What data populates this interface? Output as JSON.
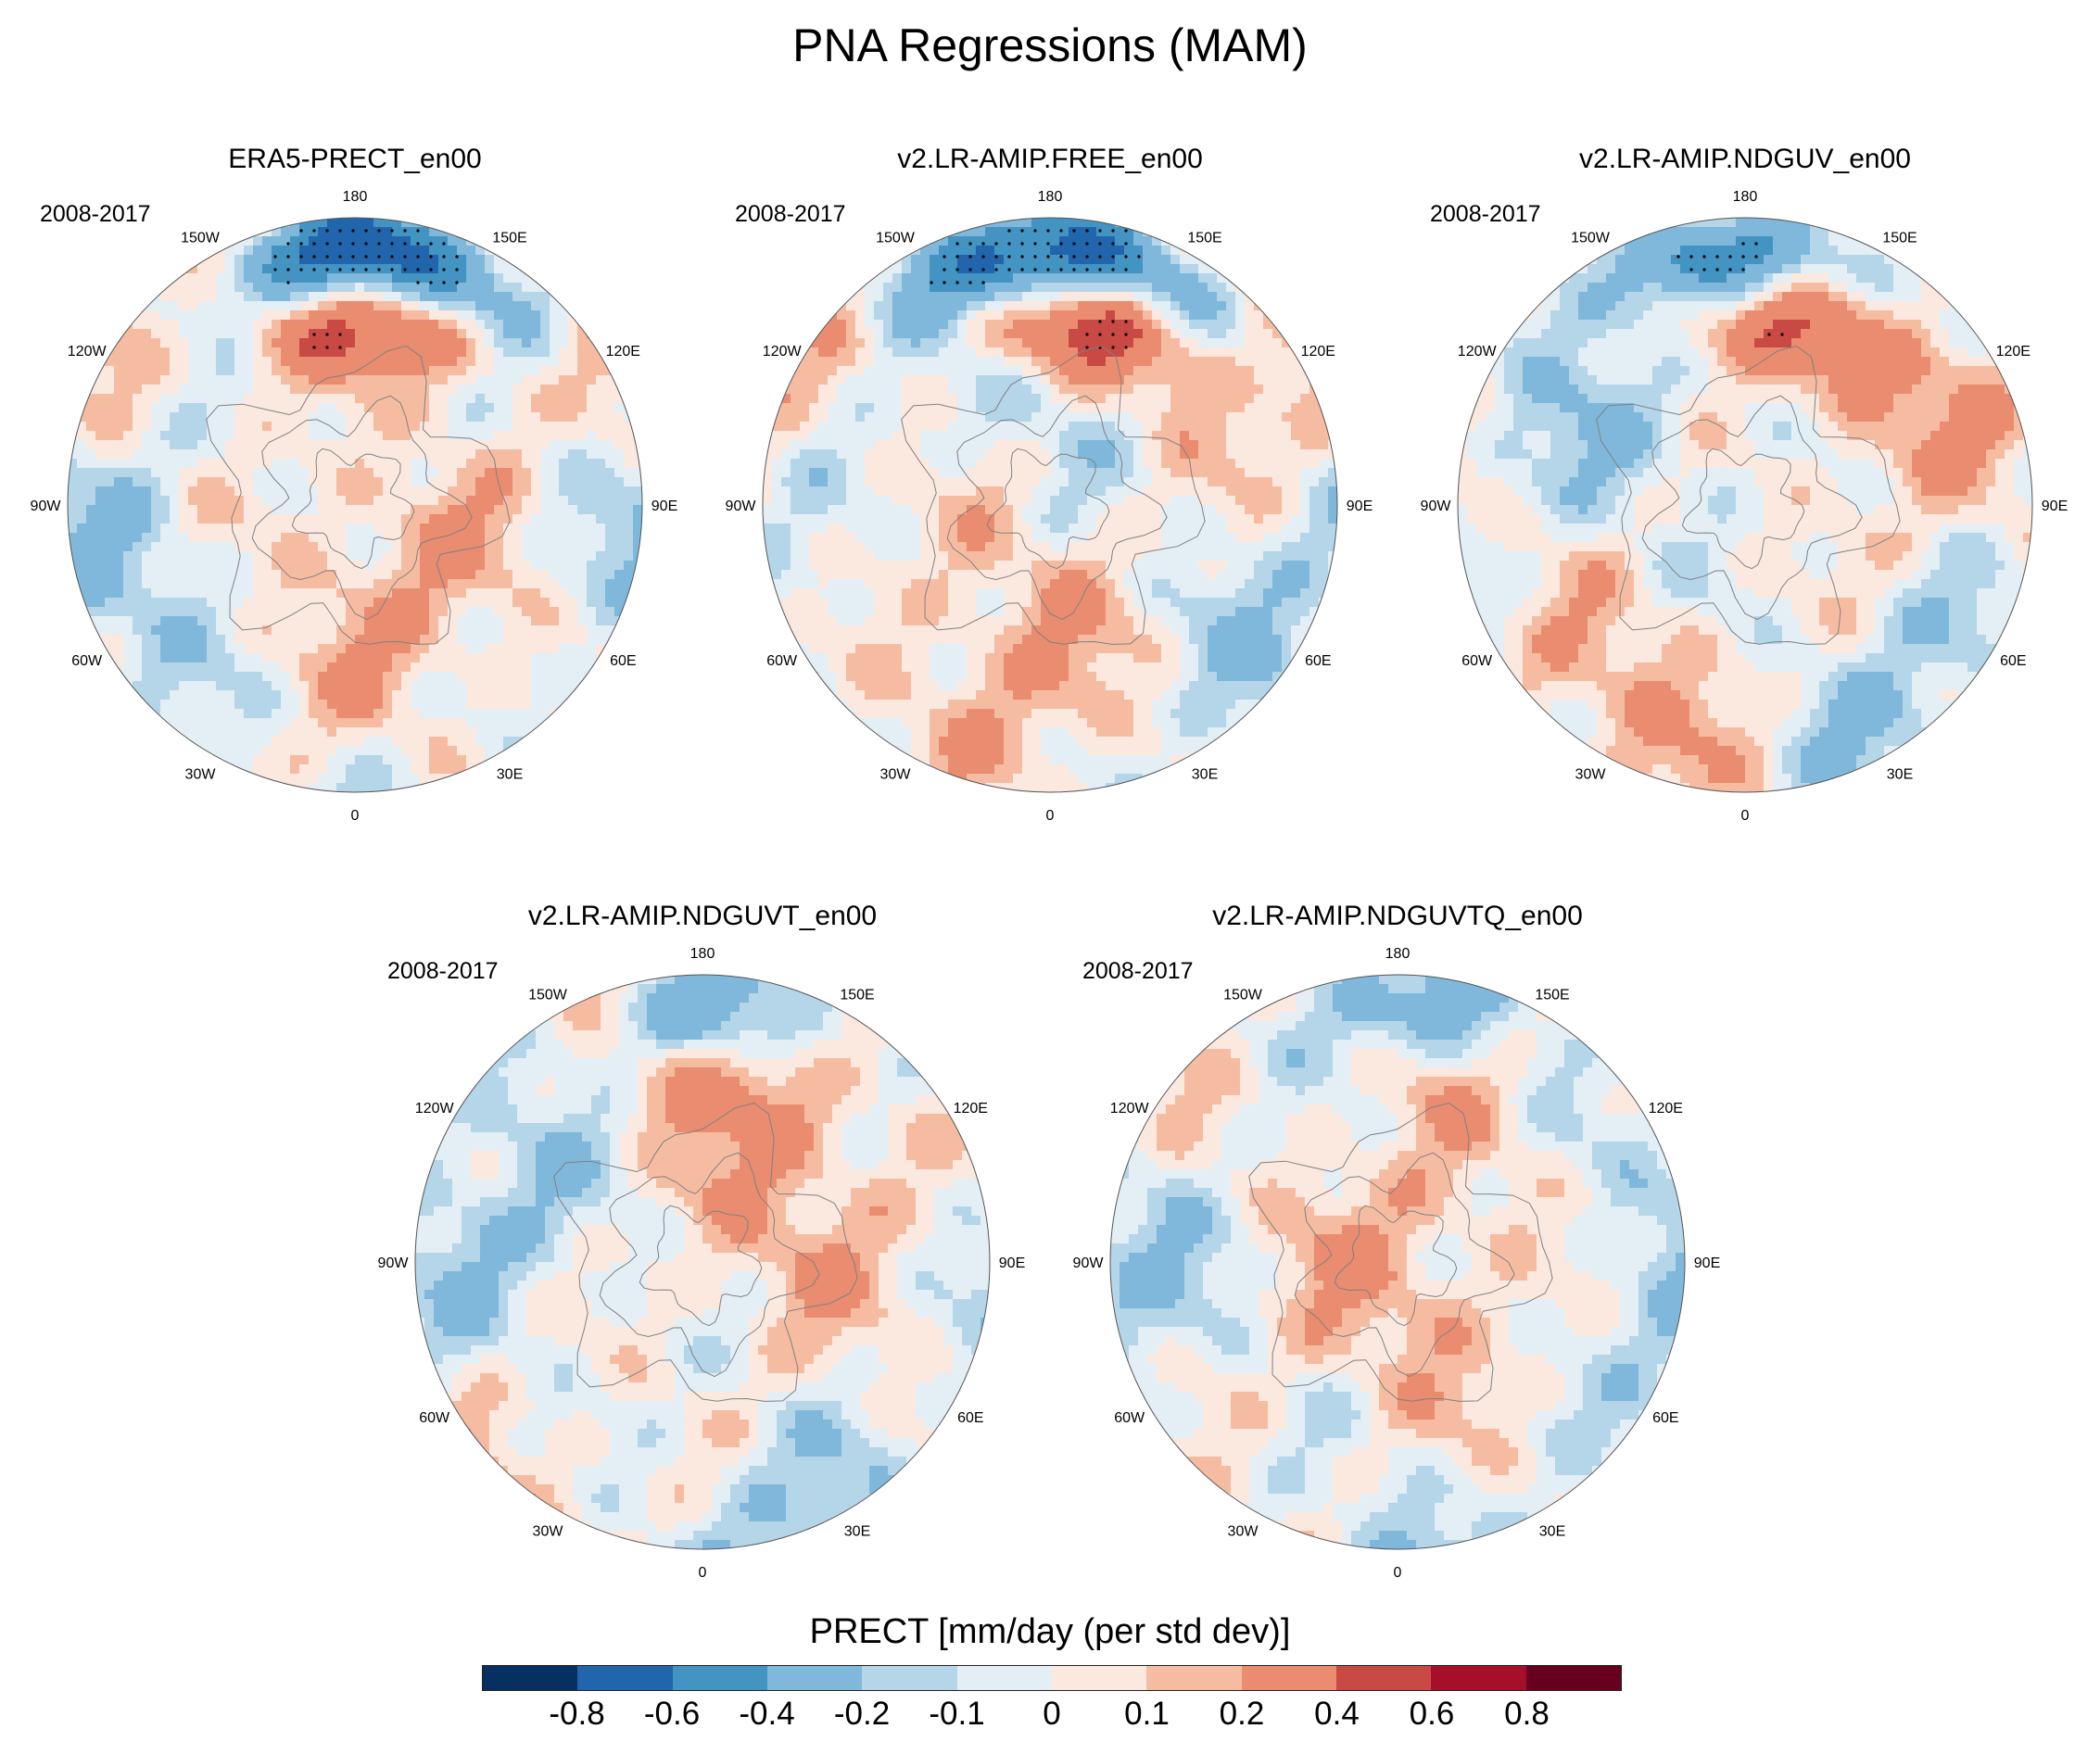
{
  "title": "PNA Regressions (MAM)",
  "longitude_labels": [
    "180",
    "150E",
    "120E",
    "90E",
    "60E",
    "30E",
    "0",
    "30W",
    "60W",
    "90W",
    "120W",
    "150W"
  ],
  "panels": [
    {
      "title": "ERA5-PRECT_en00",
      "period": "2008-2017"
    },
    {
      "title": "v2.LR-AMIP.FREE_en00",
      "period": "2008-2017"
    },
    {
      "title": "v2.LR-AMIP.NDGUV_en00",
      "period": "2008-2017"
    },
    {
      "title": "v2.LR-AMIP.NDGUVT_en00",
      "period": "2008-2017"
    },
    {
      "title": "v2.LR-AMIP.NDGUVTQ_en00",
      "period": "2008-2017"
    }
  ],
  "colorbar": {
    "title": "PRECT [mm/day (per std dev)]",
    "colors": [
      "#053061",
      "#2166ac",
      "#4393c3",
      "#7fb8da",
      "#b5d5e9",
      "#e4eef5",
      "#fbe9e0",
      "#f6bca2",
      "#e98c70",
      "#c94a44",
      "#a50f2a",
      "#67001f"
    ],
    "labels": [
      "-0.8",
      "-0.6",
      "-0.4",
      "-0.2",
      "-0.1",
      "0",
      "0.1",
      "0.2",
      "0.4",
      "0.6",
      "0.8"
    ]
  }
}
